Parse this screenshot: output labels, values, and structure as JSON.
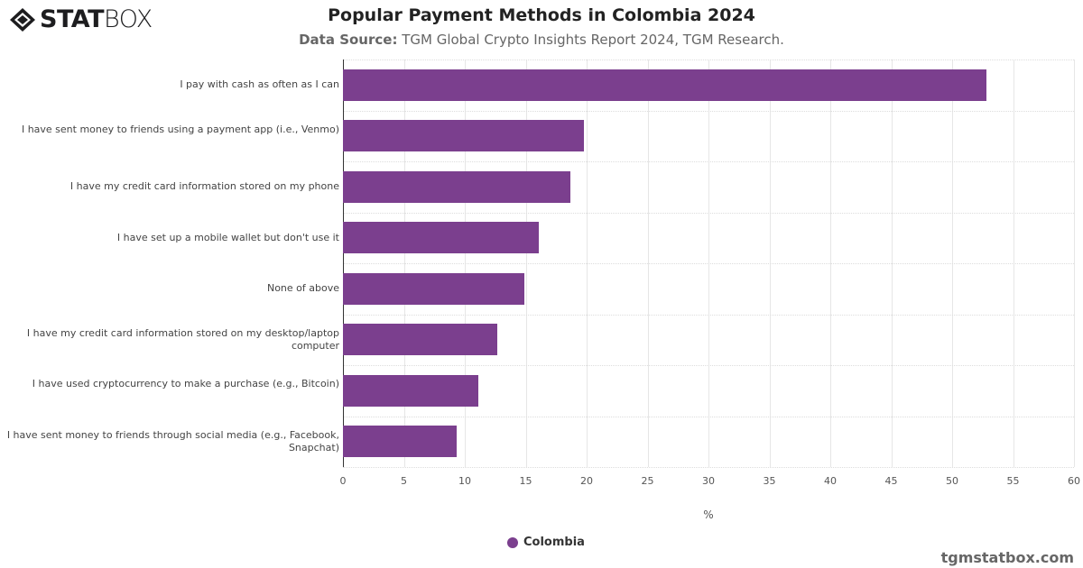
{
  "logo": {
    "bold": "STAT",
    "light": "BOX"
  },
  "header": {
    "title": "Popular Payment Methods in Colombia 2024",
    "subtitle_label": "Data Source:",
    "subtitle_text": " TGM Global Crypto Insights Report 2024, TGM Research."
  },
  "legend": {
    "label": "Colombia",
    "color": "#7b3f8e"
  },
  "watermark": "tgmstatbox.com",
  "chart_data": {
    "type": "bar",
    "orientation": "horizontal",
    "title": "Popular Payment Methods in Colombia 2024",
    "subtitle": "Data Source: TGM Global Crypto Insights Report 2024, TGM Research.",
    "xlabel": "%",
    "ylabel": "",
    "xlim": [
      0,
      60
    ],
    "xticks": [
      "0",
      "5",
      "10",
      "15",
      "20",
      "25",
      "30",
      "35",
      "40",
      "45",
      "50",
      "55",
      "60"
    ],
    "categories": [
      "I pay with cash as often as I can",
      "I have sent money to friends using a payment app (i.e., Venmo)",
      "I have my credit card information stored on my phone",
      "I have set up a mobile wallet but don't use it",
      "None of above",
      "I have my credit card information stored on my desktop/laptop computer",
      "I have used cryptocurrency to make a purchase (e.g., Bitcoin)",
      "I have sent money to friends through social media (e.g., Facebook, Snapchat)"
    ],
    "series": [
      {
        "name": "Colombia",
        "color": "#7b3f8e",
        "values": [
          52.8,
          19.8,
          18.7,
          16.1,
          14.9,
          12.7,
          11.1,
          9.3
        ]
      }
    ],
    "legend_position": "bottom",
    "grid": true
  }
}
